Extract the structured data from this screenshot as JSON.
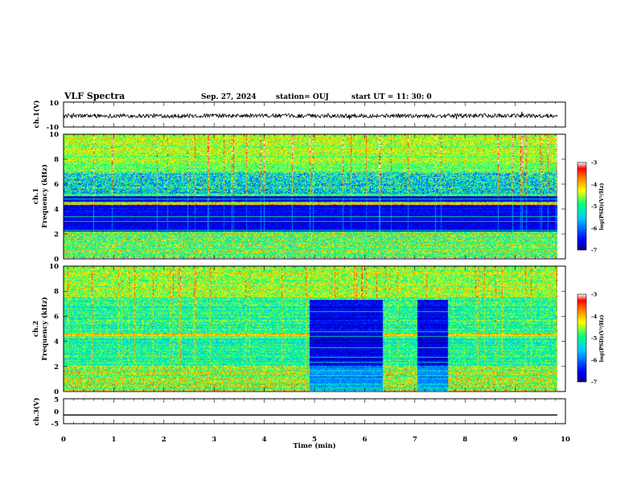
{
  "header": {
    "title": "VLF Spectra",
    "date": "Sep. 27, 2024",
    "station": "station= OUJ",
    "start": "start  UT  =   11: 30: 0"
  },
  "chart_data": [
    {
      "type": "line",
      "panel": "ch1",
      "ylabel": "ch.1(V)",
      "ylim": [
        -10,
        10
      ],
      "yticks": [
        "10",
        "-10"
      ],
      "xlim": [
        0,
        10
      ],
      "note": "noisy waveform around -1 V, amplitude about ±2 V"
    },
    {
      "type": "heatmap",
      "panel": "ch1-spectrogram",
      "ylabel_line1": "ch.1",
      "ylabel_line2": "Frequency (kHz)",
      "ylim": [
        0,
        10
      ],
      "yticks": [
        "0",
        "2",
        "4",
        "6",
        "8",
        "10"
      ],
      "xlim": [
        0,
        10
      ],
      "colorbar": {
        "label": "log(PSD)(V²/Hz)",
        "range": [
          -7,
          -3
        ],
        "ticks": [
          "-3",
          "-4",
          "-5",
          "-6",
          "-7"
        ]
      }
    },
    {
      "type": "heatmap",
      "panel": "ch2-spectrogram",
      "ylabel_line1": "ch.2",
      "ylabel_line2": "Frequency (kHz)",
      "ylim": [
        0,
        10
      ],
      "yticks": [
        "0",
        "2",
        "4",
        "6",
        "8",
        "10"
      ],
      "xlim": [
        0,
        10
      ],
      "quiet_intervals_min": [
        [
          4.9,
          6.35
        ],
        [
          7.05,
          7.65
        ]
      ],
      "colorbar": {
        "label": "log(PSD)(V²/Hz)",
        "range": [
          -7,
          -3
        ],
        "ticks": [
          "-3",
          "-4",
          "-5",
          "-6",
          "-7"
        ]
      }
    },
    {
      "type": "line",
      "panel": "ch3",
      "ylabel": "ch.3(V)",
      "ylim": [
        -5,
        5
      ],
      "yticks": [
        "5",
        "0",
        "-5"
      ],
      "xlim": [
        0,
        10
      ],
      "values_constant": -1.5
    }
  ],
  "xaxis": {
    "label": "Time  (min)",
    "ticks": [
      "0",
      "1",
      "2",
      "3",
      "4",
      "5",
      "6",
      "7",
      "8",
      "9",
      "10"
    ]
  },
  "colors": {
    "colormap": [
      "#000090",
      "#0000ff",
      "#00c8ff",
      "#00ff80",
      "#ffff00",
      "#ff8000",
      "#ff0000",
      "#ffffff"
    ]
  }
}
